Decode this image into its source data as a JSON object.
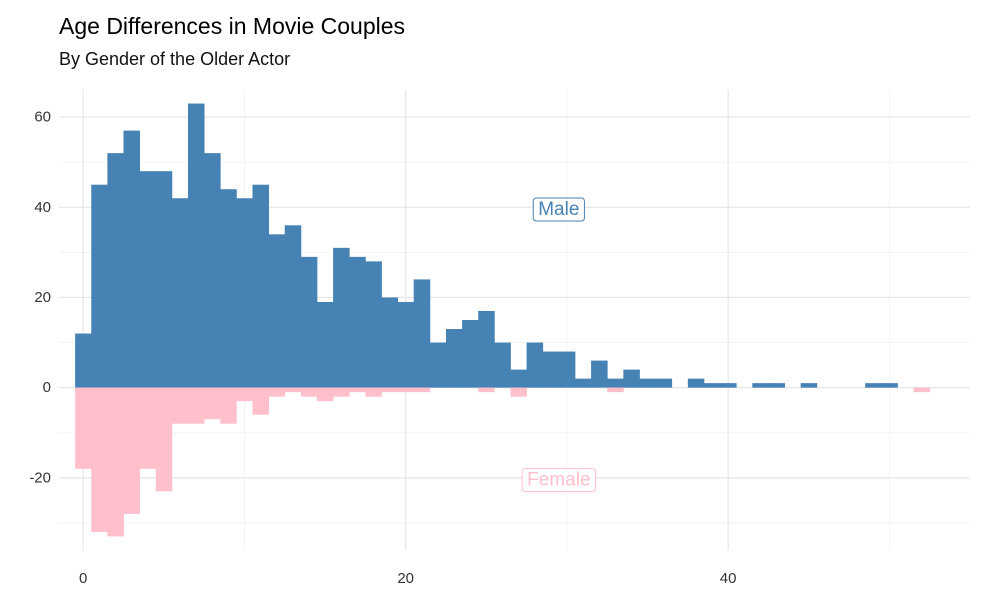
{
  "chart_data": {
    "type": "bar",
    "title": "Age Differences in Movie Couples",
    "subtitle": "By Gender of the Older Actor",
    "xlabel": "",
    "ylabel": "",
    "xlim": [
      -1.5,
      55
    ],
    "ylim": [
      -36,
      66
    ],
    "bin_width": 1,
    "x_ticks": [
      0,
      20,
      40
    ],
    "y_ticks": [
      -20,
      0,
      20,
      40,
      60
    ],
    "x_ticks_label": [
      "0",
      "20",
      "40"
    ],
    "y_ticks_label": [
      "-20",
      "0",
      "20",
      "40",
      "60"
    ],
    "grid": true,
    "series": [
      {
        "name": "Male",
        "color": "#4682B4",
        "bins": [
          {
            "x": 0,
            "count": 12
          },
          {
            "x": 1,
            "count": 45
          },
          {
            "x": 2,
            "count": 52
          },
          {
            "x": 3,
            "count": 57
          },
          {
            "x": 4,
            "count": 48
          },
          {
            "x": 5,
            "count": 48
          },
          {
            "x": 6,
            "count": 42
          },
          {
            "x": 7,
            "count": 63
          },
          {
            "x": 8,
            "count": 52
          },
          {
            "x": 9,
            "count": 44
          },
          {
            "x": 10,
            "count": 42
          },
          {
            "x": 11,
            "count": 45
          },
          {
            "x": 12,
            "count": 34
          },
          {
            "x": 13,
            "count": 36
          },
          {
            "x": 14,
            "count": 29
          },
          {
            "x": 15,
            "count": 19
          },
          {
            "x": 16,
            "count": 31
          },
          {
            "x": 17,
            "count": 29
          },
          {
            "x": 18,
            "count": 28
          },
          {
            "x": 19,
            "count": 20
          },
          {
            "x": 20,
            "count": 19
          },
          {
            "x": 21,
            "count": 24
          },
          {
            "x": 22,
            "count": 10
          },
          {
            "x": 23,
            "count": 13
          },
          {
            "x": 24,
            "count": 15
          },
          {
            "x": 25,
            "count": 17
          },
          {
            "x": 26,
            "count": 10
          },
          {
            "x": 27,
            "count": 4
          },
          {
            "x": 28,
            "count": 10
          },
          {
            "x": 29,
            "count": 8
          },
          {
            "x": 30,
            "count": 8
          },
          {
            "x": 31,
            "count": 2
          },
          {
            "x": 32,
            "count": 6
          },
          {
            "x": 33,
            "count": 2
          },
          {
            "x": 34,
            "count": 4
          },
          {
            "x": 35,
            "count": 2
          },
          {
            "x": 36,
            "count": 2
          },
          {
            "x": 38,
            "count": 2
          },
          {
            "x": 39,
            "count": 1
          },
          {
            "x": 40,
            "count": 1
          },
          {
            "x": 42,
            "count": 1
          },
          {
            "x": 43,
            "count": 1
          },
          {
            "x": 45,
            "count": 1
          },
          {
            "x": 49,
            "count": 1
          },
          {
            "x": 50,
            "count": 1
          }
        ]
      },
      {
        "name": "Female",
        "color": "#FFC0CB",
        "bins": [
          {
            "x": 0,
            "count": -18
          },
          {
            "x": 1,
            "count": -32
          },
          {
            "x": 2,
            "count": -33
          },
          {
            "x": 3,
            "count": -28
          },
          {
            "x": 4,
            "count": -18
          },
          {
            "x": 5,
            "count": -23
          },
          {
            "x": 6,
            "count": -8
          },
          {
            "x": 7,
            "count": -8
          },
          {
            "x": 8,
            "count": -7
          },
          {
            "x": 9,
            "count": -8
          },
          {
            "x": 10,
            "count": -3
          },
          {
            "x": 11,
            "count": -6
          },
          {
            "x": 12,
            "count": -2
          },
          {
            "x": 13,
            "count": -1
          },
          {
            "x": 14,
            "count": -2
          },
          {
            "x": 15,
            "count": -3
          },
          {
            "x": 16,
            "count": -2
          },
          {
            "x": 17,
            "count": -1
          },
          {
            "x": 18,
            "count": -2
          },
          {
            "x": 19,
            "count": -1
          },
          {
            "x": 20,
            "count": -1
          },
          {
            "x": 21,
            "count": -1
          },
          {
            "x": 25,
            "count": -1
          },
          {
            "x": 27,
            "count": -2
          },
          {
            "x": 33,
            "count": -1
          },
          {
            "x": 52,
            "count": -1
          }
        ]
      }
    ],
    "annotations": [
      {
        "text": "Male",
        "x": 29.5,
        "y": 39.5,
        "color": "#4682B4"
      },
      {
        "text": "Female",
        "x": 29.5,
        "y": -20.5,
        "color": "#FFC0CB"
      }
    ]
  }
}
